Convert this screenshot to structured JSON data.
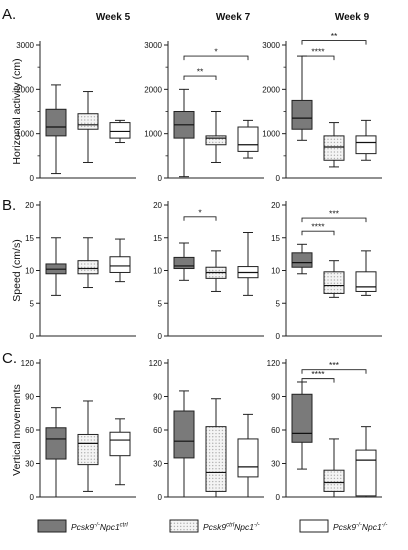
{
  "chart_data": {
    "type": "boxplot",
    "columns": [
      "Week 5",
      "Week 7",
      "Week 9"
    ],
    "row_labels": [
      "A.",
      "B.",
      "C."
    ],
    "legend": [
      {
        "name_main": "Pcsk9",
        "name_sup1": "-/-",
        "name_mid": "Npc1",
        "name_sup2": "ctrl",
        "fill": "#7a7a7a",
        "pattern": "none"
      },
      {
        "name_main": "Pcsk9",
        "name_sup1": "ctrl",
        "name_mid": "Npc1",
        "name_sup2": "-/-",
        "fill": "#f2f2f2",
        "pattern": "dots"
      },
      {
        "name_main": "Pcsk9",
        "name_sup1": "-/-",
        "name_mid": "Npc1",
        "name_sup2": "-/-",
        "fill": "#ffffff",
        "pattern": "none"
      }
    ],
    "rows": [
      {
        "ylabel": "Horizontal activity (cm)",
        "ylim": [
          0,
          3000
        ],
        "yticks": [
          "0",
          "1000",
          "2000",
          "3000"
        ],
        "tick_values": [
          0,
          1000,
          2000,
          3000
        ],
        "minor_ticks": [
          500,
          1500,
          2500
        ],
        "panels": [
          {
            "week": "Week 5",
            "boxes": [
              {
                "min": 100,
                "q1": 950,
                "median": 1150,
                "q3": 1550,
                "max": 2100
              },
              {
                "min": 350,
                "q1": 1100,
                "median": 1200,
                "q3": 1450,
                "max": 1950
              },
              {
                "min": 800,
                "q1": 900,
                "median": 1050,
                "q3": 1250,
                "max": 1300
              }
            ],
            "sig": []
          },
          {
            "week": "Week 7",
            "boxes": [
              {
                "min": 30,
                "q1": 900,
                "median": 1200,
                "q3": 1500,
                "max": 2000
              },
              {
                "min": 350,
                "q1": 750,
                "median": 900,
                "q3": 950,
                "max": 1500
              },
              {
                "min": 450,
                "q1": 600,
                "median": 750,
                "q3": 1150,
                "max": 1300
              }
            ],
            "sig": [
              {
                "from": 0,
                "to": 2,
                "y": 2750,
                "label": "*"
              },
              {
                "from": 0,
                "to": 1,
                "y": 2300,
                "label": "**"
              }
            ]
          },
          {
            "week": "Week 9",
            "boxes": [
              {
                "min": 850,
                "q1": 1100,
                "median": 1350,
                "q3": 1750,
                "max": 2750
              },
              {
                "min": 250,
                "q1": 400,
                "median": 700,
                "q3": 950,
                "max": 1250
              },
              {
                "min": 400,
                "q1": 550,
                "median": 800,
                "q3": 950,
                "max": 1300
              }
            ],
            "sig": [
              {
                "from": 0,
                "to": 2,
                "y": 3100,
                "label": "**"
              },
              {
                "from": 0,
                "to": 1,
                "y": 2750,
                "label": "****"
              }
            ]
          }
        ]
      },
      {
        "ylabel": "Speed (cm/s)",
        "ylim": [
          0,
          20
        ],
        "yticks": [
          "0",
          "5",
          "10",
          "15",
          "20"
        ],
        "tick_values": [
          0,
          5,
          10,
          15,
          20
        ],
        "minor_ticks": [],
        "panels": [
          {
            "week": "Week 5",
            "boxes": [
              {
                "min": 6.2,
                "q1": 9.5,
                "median": 10.2,
                "q3": 11.0,
                "max": 15.0
              },
              {
                "min": 7.4,
                "q1": 9.5,
                "median": 10.3,
                "q3": 11.5,
                "max": 15.0
              },
              {
                "min": 8.3,
                "q1": 9.7,
                "median": 10.7,
                "q3": 12.1,
                "max": 14.8
              }
            ],
            "sig": []
          },
          {
            "week": "Week 7",
            "boxes": [
              {
                "min": 8.5,
                "q1": 10.3,
                "median": 10.7,
                "q3": 12.0,
                "max": 14.2
              },
              {
                "min": 6.8,
                "q1": 8.8,
                "median": 9.7,
                "q3": 10.5,
                "max": 13.0
              },
              {
                "min": 6.2,
                "q1": 8.9,
                "median": 9.7,
                "q3": 10.6,
                "max": 15.8
              }
            ],
            "sig": [
              {
                "from": 0,
                "to": 1,
                "y": 18.2,
                "label": "*"
              }
            ]
          },
          {
            "week": "Week 9",
            "boxes": [
              {
                "min": 9.5,
                "q1": 10.5,
                "median": 11.2,
                "q3": 12.7,
                "max": 14.0
              },
              {
                "min": 5.9,
                "q1": 6.5,
                "median": 7.7,
                "q3": 9.8,
                "max": 11.5
              },
              {
                "min": 6.2,
                "q1": 6.8,
                "median": 7.5,
                "q3": 9.8,
                "max": 13.0
              }
            ],
            "sig": [
              {
                "from": 0,
                "to": 2,
                "y": 18.0,
                "label": "***"
              },
              {
                "from": 0,
                "to": 1,
                "y": 16.0,
                "label": "****"
              }
            ]
          }
        ]
      },
      {
        "ylabel": "Vertical movements",
        "ylim": [
          0,
          120
        ],
        "yticks": [
          "0",
          "30",
          "60",
          "90",
          "120"
        ],
        "tick_values": [
          0,
          30,
          60,
          90,
          120
        ],
        "minor_ticks": [],
        "panels": [
          {
            "week": "Week 5",
            "boxes": [
              {
                "min": 0,
                "q1": 34,
                "median": 52,
                "q3": 62,
                "max": 80
              },
              {
                "min": 5,
                "q1": 29,
                "median": 48,
                "q3": 56,
                "max": 86
              },
              {
                "min": 11,
                "q1": 37,
                "median": 51,
                "q3": 58,
                "max": 70
              }
            ],
            "sig": []
          },
          {
            "week": "Week 7",
            "boxes": [
              {
                "min": 0,
                "q1": 35,
                "median": 50,
                "q3": 77,
                "max": 95
              },
              {
                "min": 0,
                "q1": 5,
                "median": 22,
                "q3": 63,
                "max": 88
              },
              {
                "min": 0,
                "q1": 18,
                "median": 27,
                "q3": 52,
                "max": 74
              }
            ],
            "sig": []
          },
          {
            "week": "Week 9",
            "boxes": [
              {
                "min": 25,
                "q1": 49,
                "median": 57,
                "q3": 92,
                "max": 103
              },
              {
                "min": 0,
                "q1": 5,
                "median": 13,
                "q3": 24,
                "max": 52
              },
              {
                "min": 0,
                "q1": 1,
                "median": 33,
                "q3": 42,
                "max": 63
              }
            ],
            "sig": [
              {
                "from": 0,
                "to": 2,
                "y": 114,
                "label": "***"
              },
              {
                "from": 0,
                "to": 1,
                "y": 106,
                "label": "****"
              }
            ]
          }
        ]
      }
    ]
  }
}
